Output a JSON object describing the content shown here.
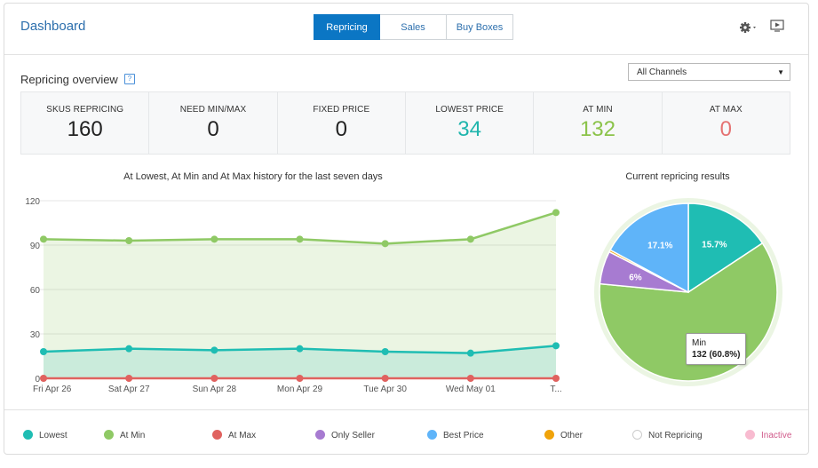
{
  "header": {
    "title": "Dashboard",
    "tabs": [
      {
        "label": "Repricing",
        "active": true
      },
      {
        "label": "Sales",
        "active": false
      },
      {
        "label": "Buy Boxes",
        "active": false
      }
    ]
  },
  "overview": {
    "title": "Repricing overview",
    "help": "?",
    "channel_select": "All Channels",
    "stats": [
      {
        "label": "SKUS REPRICING",
        "value": "160",
        "color": "#222222"
      },
      {
        "label": "NEED MIN/MAX",
        "value": "0",
        "color": "#222222"
      },
      {
        "label": "FIXED PRICE",
        "value": "0",
        "color": "#222222"
      },
      {
        "label": "LOWEST PRICE",
        "value": "34",
        "color": "#1fb5ad"
      },
      {
        "label": "AT MIN",
        "value": "132",
        "color": "#8bc34a"
      },
      {
        "label": "AT MAX",
        "value": "0",
        "color": "#e57373"
      }
    ]
  },
  "chart_data": [
    {
      "type": "line",
      "title": "At Lowest, At Min and At Max history for the last seven days",
      "categories": [
        "Fri Apr 26",
        "Sat Apr 27",
        "Sun Apr 28",
        "Mon Apr 29",
        "Tue Apr 30",
        "Wed May 01",
        "T..."
      ],
      "ylim": [
        0,
        120
      ],
      "yticks": [
        0,
        30,
        60,
        90,
        120
      ],
      "grid": true,
      "series": [
        {
          "name": "At Min",
          "color": "#8fc965",
          "values": [
            94,
            93,
            94,
            94,
            91,
            94,
            112
          ]
        },
        {
          "name": "Lowest",
          "color": "#1fbdb3",
          "values": [
            18,
            20,
            19,
            20,
            18,
            17,
            22
          ]
        },
        {
          "name": "At Max",
          "color": "#e0625f",
          "values": [
            0,
            0,
            0,
            0,
            0,
            0,
            0
          ]
        }
      ]
    },
    {
      "type": "pie",
      "title": "Current repricing results",
      "slices": [
        {
          "name": "Lowest",
          "value": 15.7,
          "label": "15.7%",
          "color": "#1fbdb3"
        },
        {
          "name": "At Min",
          "value": 60.8,
          "label": "",
          "color": "#8fc965"
        },
        {
          "name": "Only Seller",
          "value": 6.0,
          "label": "6%",
          "color": "#a77bd1"
        },
        {
          "name": "Other",
          "value": 0.4,
          "label": "",
          "color": "#f0a30a"
        },
        {
          "name": "Best Price",
          "value": 17.1,
          "label": "17.1%",
          "color": "#5fb4f9"
        }
      ],
      "tooltip": {
        "name": "Min",
        "value": "132 (60.8%)"
      }
    }
  ],
  "legend": [
    {
      "label": "Lowest",
      "color": "#1fbdb3",
      "hollow": false
    },
    {
      "label": "At Min",
      "color": "#8fc965",
      "hollow": false
    },
    {
      "label": "At Max",
      "color": "#e0625f",
      "hollow": false
    },
    {
      "label": "Only Seller",
      "color": "#a77bd1",
      "hollow": false
    },
    {
      "label": "Best Price",
      "color": "#5fb4f9",
      "hollow": false
    },
    {
      "label": "Other",
      "color": "#f0a30a",
      "hollow": false
    },
    {
      "label": "Not Repricing",
      "color": "#cccccc",
      "hollow": true
    },
    {
      "label": "Inactive",
      "color": "#f8bbd0",
      "hollow": false
    }
  ]
}
